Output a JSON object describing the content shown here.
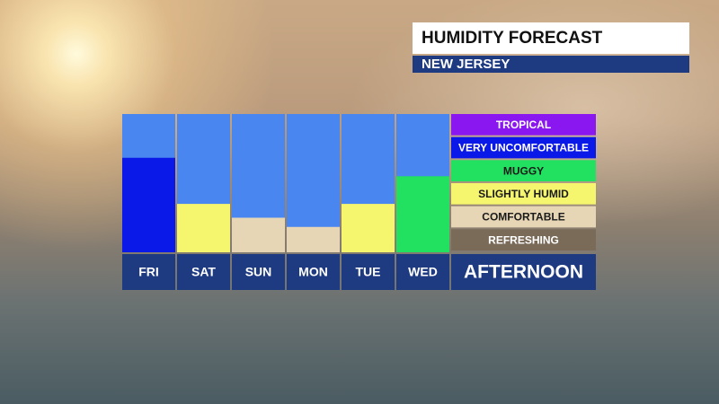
{
  "chart_data": {
    "type": "bar",
    "title": "HUMIDITY FORECAST",
    "subtitle": "NEW JERSEY",
    "categories": [
      "FRI",
      "SAT",
      "SUN",
      "MON",
      "TUE",
      "WED"
    ],
    "values": [
      4.1,
      2.1,
      1.5,
      1.1,
      2.1,
      3.3
    ],
    "colors": [
      "#0a18e8",
      "#f6f66e",
      "#e6d6b6",
      "#e6d6b6",
      "#f6f66e",
      "#22e060"
    ],
    "background_color": "#4a86f0",
    "ylim": [
      0,
      6
    ],
    "period_label": "AFTERNOON",
    "legend": [
      {
        "name": "TROPICAL",
        "color": "#8a16f0"
      },
      {
        "name": "VERY UNCOMFORTABLE",
        "color": "#0a18e8"
      },
      {
        "name": "MUGGY",
        "color": "#22e060"
      },
      {
        "name": "SLIGHTLY HUMID",
        "color": "#f6f66e"
      },
      {
        "name": "COMFORTABLE",
        "color": "#e6d6b6"
      },
      {
        "name": "REFRESHING",
        "color": "#7a6a58"
      }
    ]
  }
}
